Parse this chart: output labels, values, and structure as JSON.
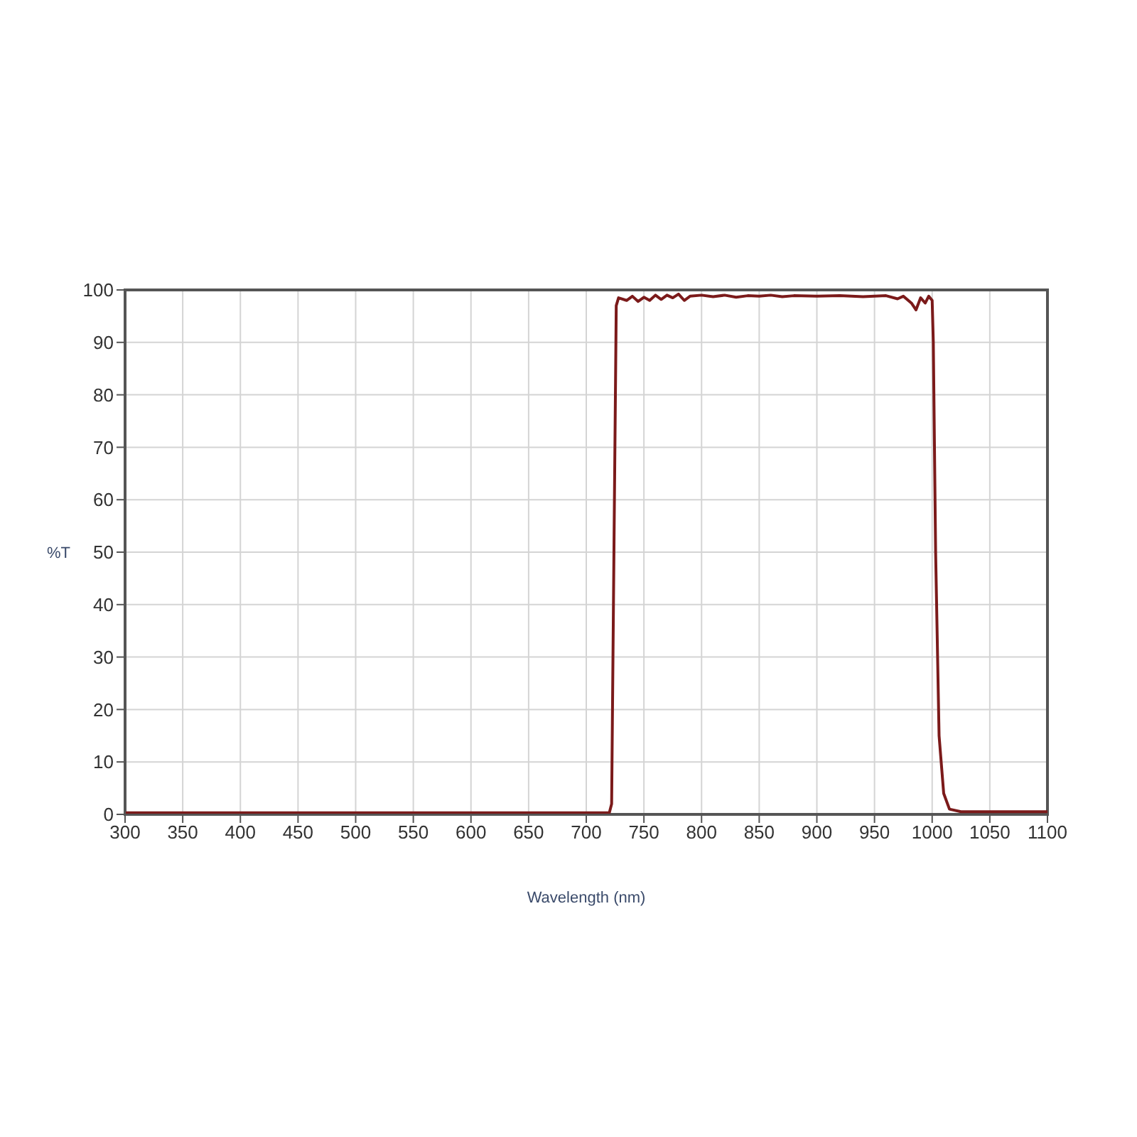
{
  "chart_data": {
    "type": "line",
    "xlabel": "Wavelength (nm)",
    "ylabel": "%T",
    "xlim": [
      300,
      1100
    ],
    "xticks": [
      300,
      350,
      400,
      450,
      500,
      550,
      600,
      650,
      700,
      750,
      800,
      850,
      900,
      950,
      1000,
      1050,
      1100
    ],
    "ylim": [
      0,
      100
    ],
    "yticks": [
      0,
      10,
      20,
      30,
      40,
      50,
      60,
      70,
      80,
      90,
      100
    ],
    "grid": true,
    "legend": false,
    "marker": "none",
    "line_style": "solid",
    "series": [
      {
        "color": "#7b1a1a",
        "x": [
          300,
          720,
          722,
          724,
          726,
          728,
          735,
          740,
          745,
          750,
          755,
          760,
          765,
          770,
          775,
          780,
          785,
          790,
          800,
          810,
          820,
          830,
          840,
          850,
          860,
          870,
          880,
          900,
          920,
          940,
          960,
          970,
          975,
          982,
          986,
          990,
          994,
          997,
          1000,
          1001,
          1003,
          1006,
          1010,
          1015,
          1025,
          1100
        ],
        "values": [
          0.3,
          0.3,
          2,
          50,
          97,
          98.5,
          98,
          98.8,
          97.8,
          98.6,
          98,
          99,
          98.2,
          99,
          98.5,
          99.2,
          98,
          98.8,
          99,
          98.7,
          99,
          98.6,
          98.9,
          98.8,
          99,
          98.7,
          98.9,
          98.8,
          98.9,
          98.7,
          98.9,
          98.3,
          98.8,
          97.5,
          96.2,
          98.5,
          97.5,
          98.8,
          98,
          90,
          50,
          15,
          4,
          1,
          0.5,
          0.5
        ]
      }
    ]
  }
}
